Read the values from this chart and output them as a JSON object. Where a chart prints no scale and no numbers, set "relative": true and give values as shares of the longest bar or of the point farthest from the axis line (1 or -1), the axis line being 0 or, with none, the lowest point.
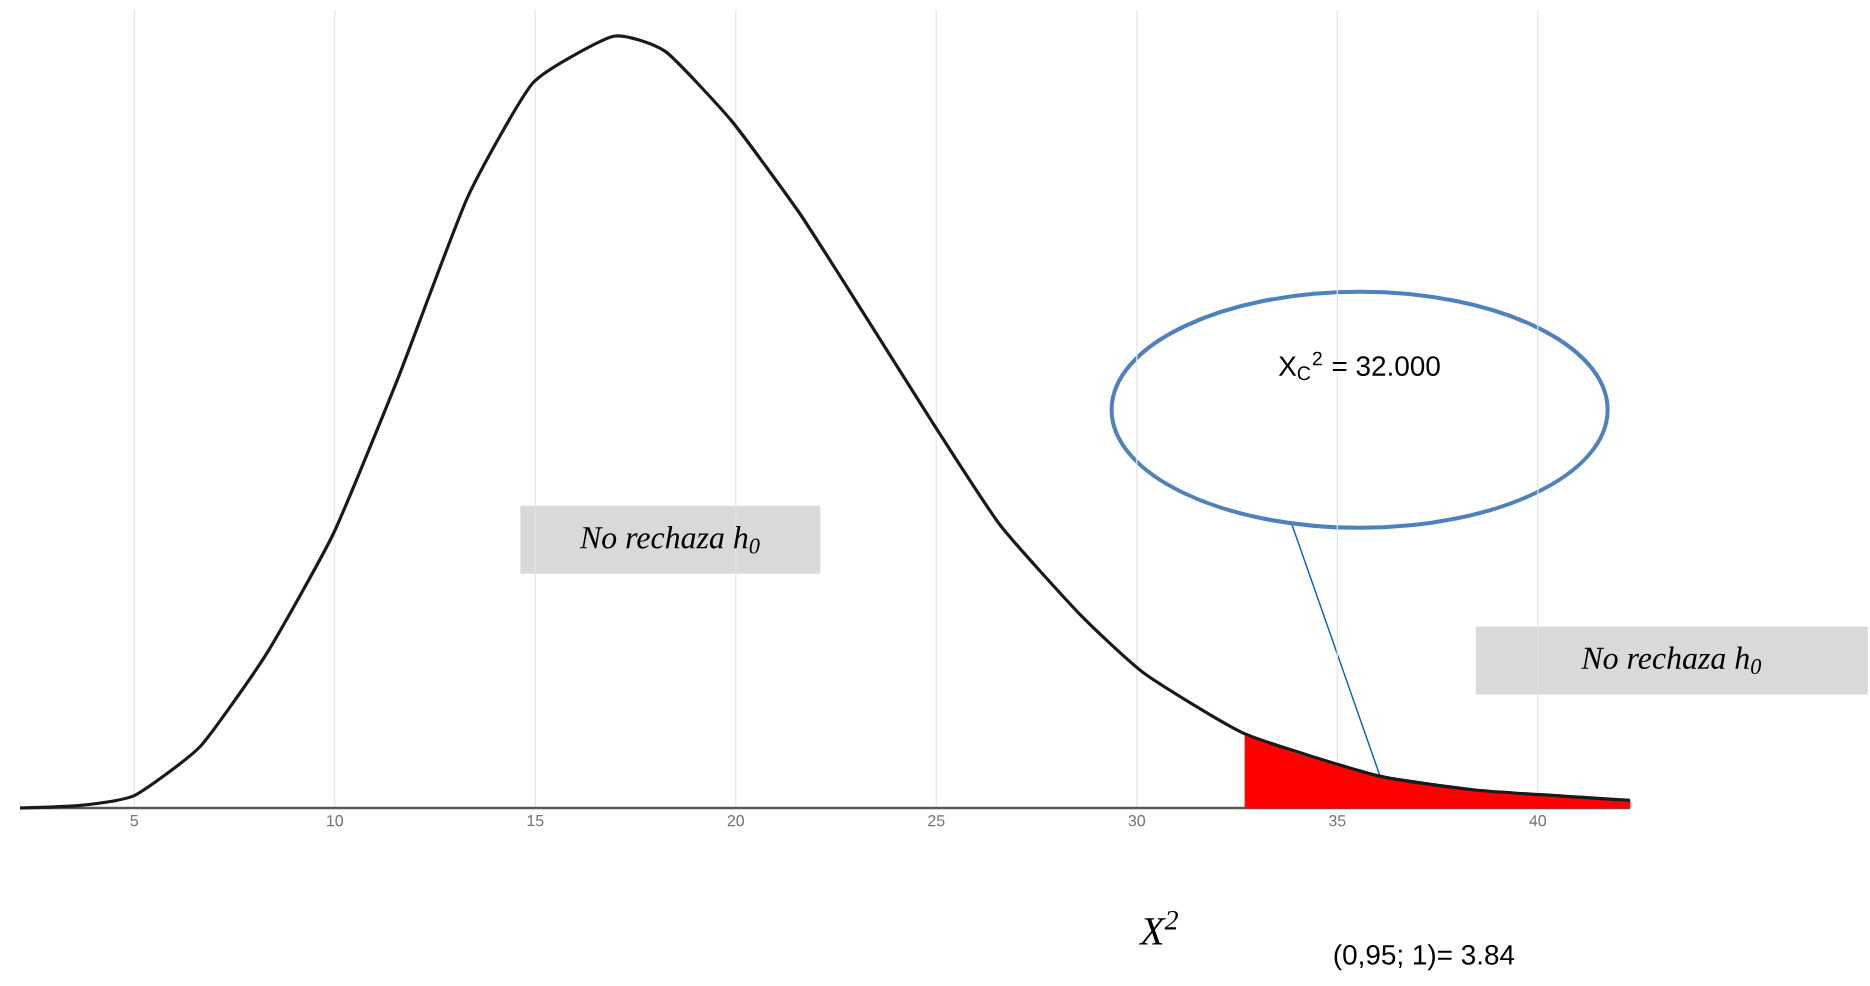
{
  "chart_data": {
    "type": "line",
    "relative": true,
    "grid": true,
    "xlim": [
      2.15,
      42.3
    ],
    "xticks": [
      5,
      10,
      15,
      20,
      25,
      30,
      35,
      40
    ],
    "series": [
      {
        "color": "#1a1a1a",
        "x": [
          2.15,
          3.6,
          5,
          6.65,
          8.3,
          9.97,
          11.6,
          13.3,
          14.95,
          16.95,
          18.25,
          19.9,
          21.6,
          23.2,
          24.9,
          26.6,
          28.6,
          30.2,
          32.7,
          36.0,
          38.5,
          42.3
        ],
        "values": [
          0,
          0.003,
          0.016,
          0.08,
          0.2,
          0.356,
          0.56,
          0.79,
          0.94,
          1.0,
          0.98,
          0.89,
          0.77,
          0.64,
          0.5,
          0.366,
          0.25,
          0.174,
          0.096,
          0.042,
          0.023,
          0.01
        ]
      },
      {
        "type": "area",
        "color": "#ff0000",
        "x": [
          32.7,
          34,
          36.0,
          38.5,
          42.3
        ],
        "values": [
          0.096,
          0.07,
          0.042,
          0.023,
          0.01
        ]
      }
    ],
    "annotations": [
      "X$_{C}$$^{2}$ = 32.000",
      "No rechaza h$_{0}$",
      "No rechaza h$_{0}$",
      "X$^{2}$",
      "(0,95; 1)= 3.84"
    ]
  }
}
